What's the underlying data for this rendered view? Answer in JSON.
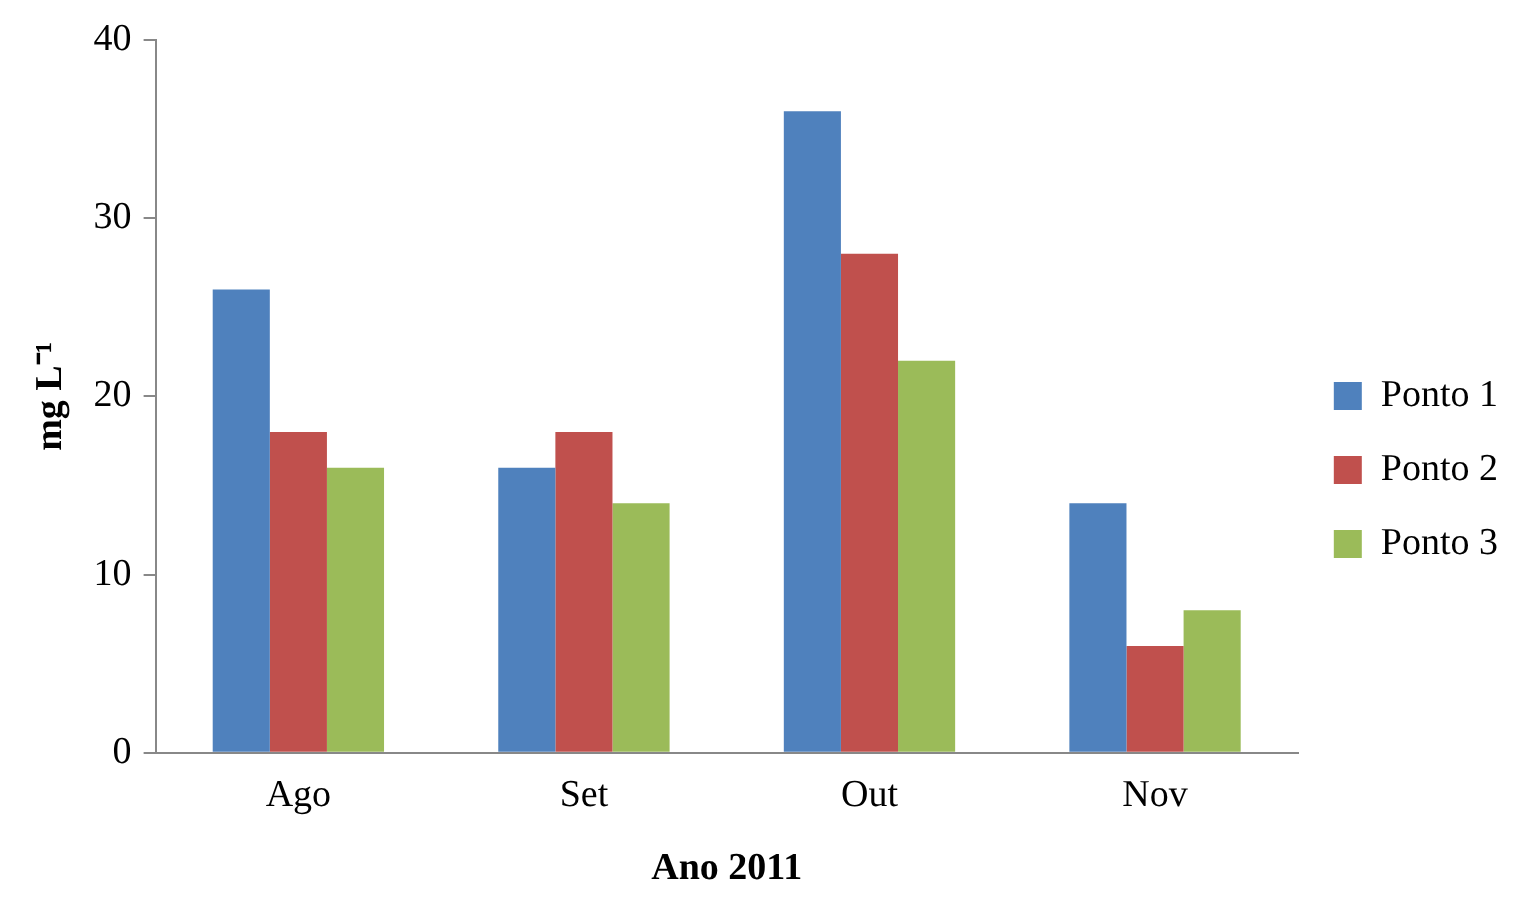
{
  "chart_data": {
    "type": "bar",
    "xlabel": "Ano 2011",
    "ylabel": "mg L⁻¹",
    "categories": [
      "Ago",
      "Set",
      "Out",
      "Nov"
    ],
    "series": [
      {
        "name": "Ponto 1",
        "color": "#4f81bd",
        "values": [
          26,
          16,
          36,
          14
        ]
      },
      {
        "name": "Ponto 2",
        "color": "#c0504d",
        "values": [
          18,
          18,
          28,
          6
        ]
      },
      {
        "name": "Ponto 3",
        "color": "#9bbb59",
        "values": [
          16,
          14,
          22,
          8
        ]
      }
    ],
    "ylim": [
      0,
      40
    ],
    "yticks": [
      0,
      10,
      20,
      30,
      40
    ],
    "grid": false,
    "legend": "right"
  }
}
